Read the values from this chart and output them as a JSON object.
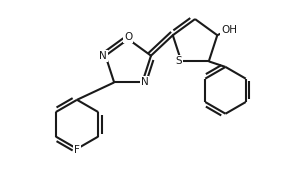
{
  "bg_color": "#ffffff",
  "line_color": "#1a1a1a",
  "line_width": 1.5,
  "font_size": 7.5,
  "xlim": [
    -1.6,
    2.6
  ],
  "ylim": [
    -1.8,
    1.3
  ]
}
